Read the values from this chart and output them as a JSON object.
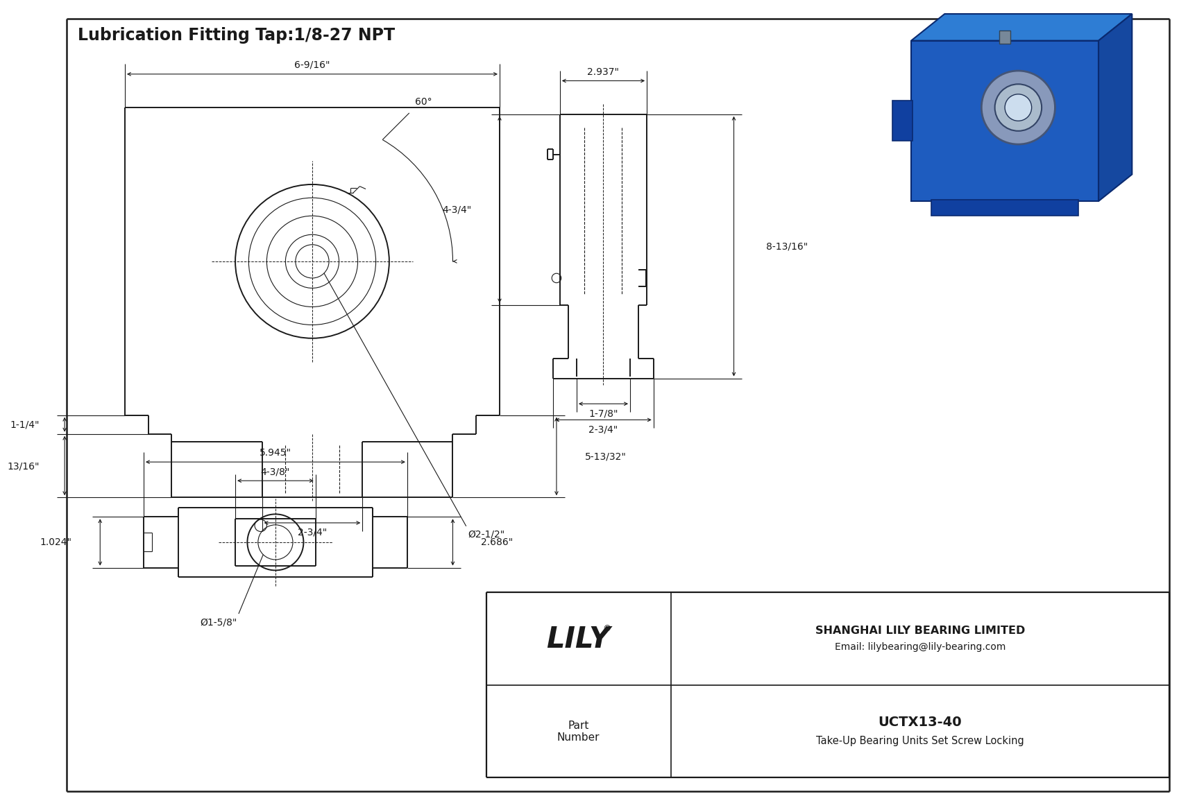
{
  "title": "Lubrication Fitting Tap:1/8-27 NPT",
  "bg_color": "#ffffff",
  "line_color": "#1a1a1a",
  "dim_color": "#1a1a1a",
  "title_fontsize": 17,
  "dim_fontsize": 10,
  "table_part_number": "UCTX13-40",
  "table_description": "Take-Up Bearing Units Set Screw Locking",
  "table_company": "SHANGHAI LILY BEARING LIMITED",
  "table_email": "Email: lilybearing@lily-bearing.com",
  "table_part_label": "Part\nNumber",
  "logo_text": "LILY",
  "logo_reg": "®",
  "dims_front": {
    "overall_width": "6-9/16\"",
    "height_top": "1-1/4\"",
    "height_bottom": "13/16\"",
    "slot_width": "2-3/4\"",
    "shaft_dia": "Ø2-1/2\"",
    "side_height": "5-13/32\"",
    "angle": "60°"
  },
  "dims_side": {
    "width_top": "2.937\"",
    "height_mid": "4-3/4\"",
    "overall_height": "8-13/16\"",
    "slot_inner": "1-7/8\"",
    "base_width": "2-3/4\""
  },
  "dims_bottom": {
    "overall_width": "5.945\"",
    "slot_width": "4-3/8\"",
    "height": "2.686\"",
    "foot_height": "1.024\"",
    "shaft_dia": "Ø1-5/8\""
  }
}
